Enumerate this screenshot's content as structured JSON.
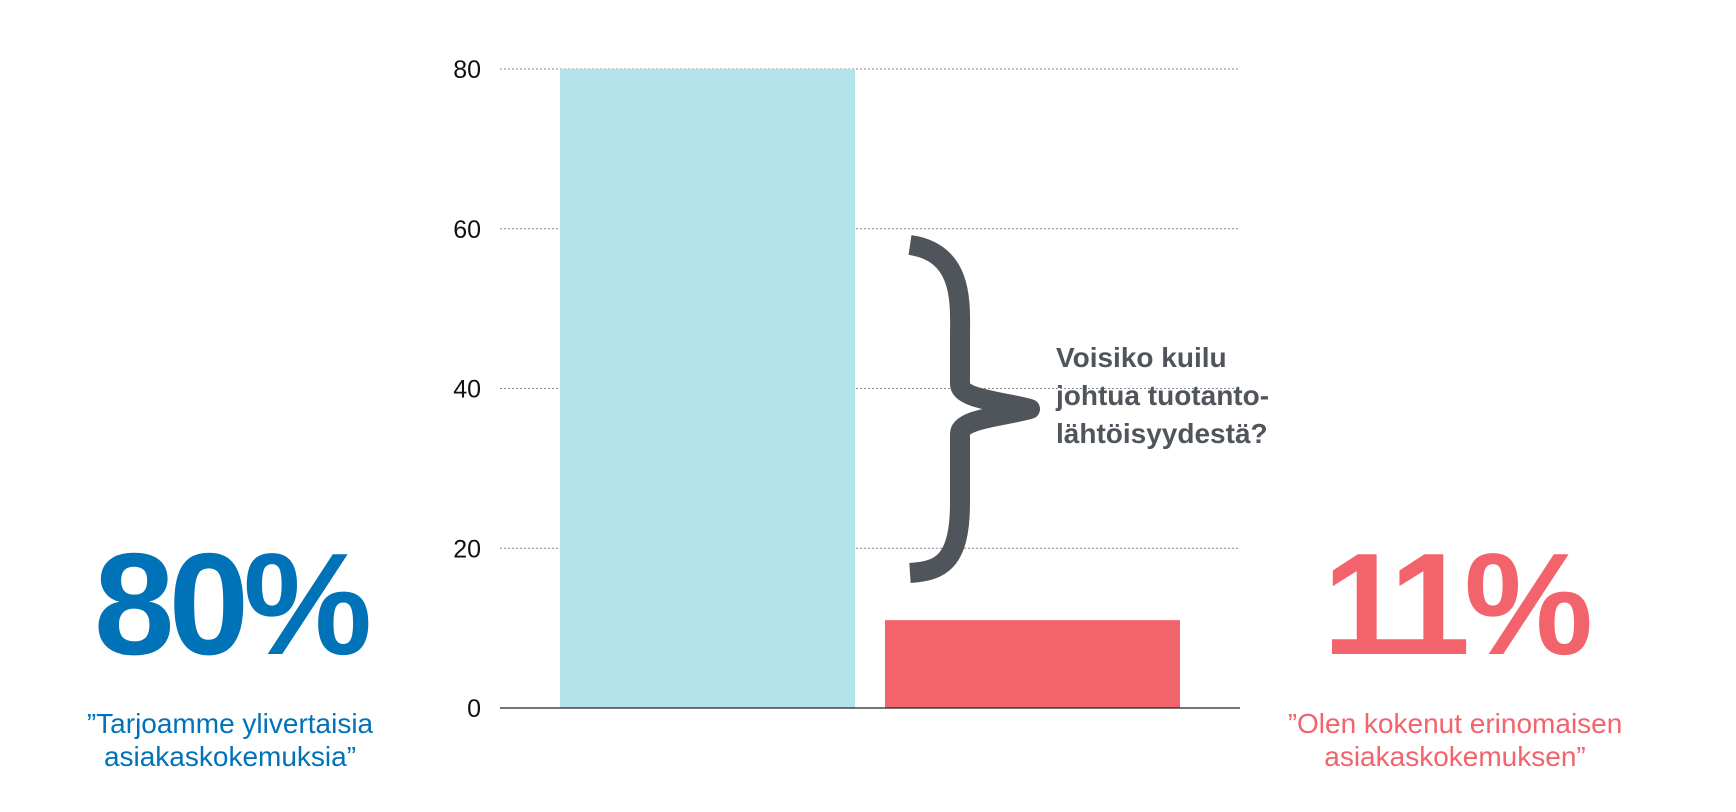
{
  "chart_data": {
    "type": "bar",
    "categories": [
      "”Tarjoamme ylivertaisia asiakaskokemuksia”",
      "”Olen kokenut erinomaisen asiakaskokemuksen”"
    ],
    "values": [
      80,
      11
    ],
    "ylim": [
      0,
      80
    ],
    "yticks": [
      0,
      20,
      40,
      60,
      80
    ],
    "grid": true,
    "colors": [
      "#b2e2ea",
      "#f2636c"
    ],
    "annotation": "Voisiko kuilu johtua tuotanto-lähtöisyydestä?"
  },
  "left_stat": {
    "value": "80%",
    "quote_line1": "”Tarjoamme ylivertaisia",
    "quote_line2": "asiakaskokemuksia”",
    "color": "#0072b8"
  },
  "right_stat": {
    "value": "11%",
    "quote_line1": "”Olen kokenut erinomaisen",
    "quote_line2": "asiakaskokemuksen”",
    "color": "#f2636c"
  },
  "gap_question": {
    "line1": "Voisiko kuilu",
    "line2": "johtua tuotanto-",
    "line3": "lähtöisyydestä?",
    "brace_color": "#50545b"
  }
}
